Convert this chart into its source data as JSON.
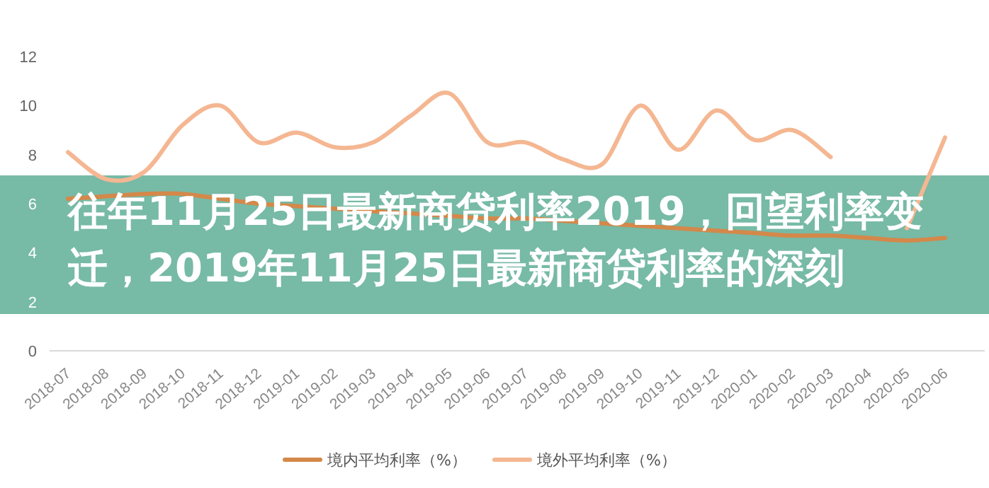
{
  "chart_data": {
    "type": "line",
    "title": "往年11月25日最新商贷利率2019，回望利率变迁，2019年11月25日最新商贷利率的深刻",
    "categories": [
      "2018-07",
      "2018-08",
      "2018-09",
      "2018-10",
      "2018-11",
      "2018-12",
      "2019-01",
      "2019-02",
      "2019-03",
      "2019-04",
      "2019-05",
      "2019-06",
      "2019-07",
      "2019-08",
      "2019-09",
      "2019-10",
      "2019-11",
      "2019-12",
      "2020-01",
      "2020-02",
      "2020-03",
      "2020-04",
      "2020-05",
      "2020-06"
    ],
    "series": [
      {
        "name": "境内平均利率（%）",
        "color": "#d4884a",
        "values": [
          6.2,
          6.3,
          6.4,
          6.4,
          6.2,
          6.0,
          5.9,
          5.8,
          5.7,
          5.6,
          5.5,
          5.4,
          5.4,
          5.3,
          5.2,
          5.1,
          5.0,
          4.9,
          4.8,
          4.7,
          4.7,
          4.6,
          4.5,
          4.6
        ]
      },
      {
        "name": "境外平均利率（%）",
        "color": "#f4b792",
        "values": [
          8.1,
          7.0,
          7.3,
          9.2,
          10.0,
          8.5,
          8.9,
          8.3,
          8.5,
          9.6,
          10.5,
          8.5,
          8.5,
          7.8,
          7.6,
          10.0,
          8.2,
          9.8,
          8.6,
          9.0,
          7.9,
          null,
          5.0,
          8.7
        ]
      }
    ],
    "ylim": [
      0,
      12
    ],
    "yticks": [
      0,
      2,
      4,
      6,
      8,
      10,
      12
    ],
    "grid": false,
    "legend": "bottom",
    "marker": "none",
    "line_style": "solid"
  }
}
